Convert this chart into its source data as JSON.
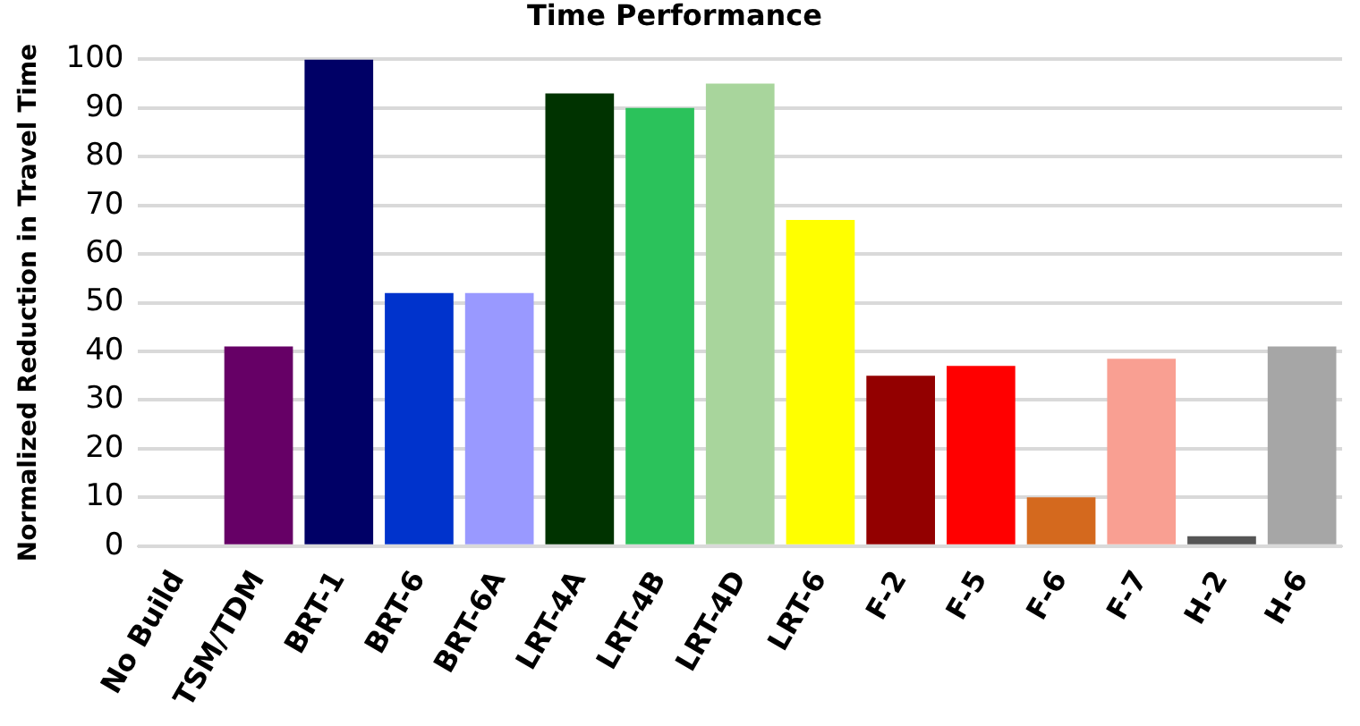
{
  "chart_data": {
    "type": "bar",
    "title": "Time Performance",
    "ylabel": "Normalized Reduction in Travel Time",
    "categories": [
      "No Build",
      "TSM/TDM",
      "BRT-1",
      "BRT-6",
      "BRT-6A",
      "LRT-4A",
      "LRT-4B",
      "LRT-4D",
      "LRT-6",
      "F-2",
      "F-5",
      "F-6",
      "F-7",
      "H-2",
      "H-6"
    ],
    "values": [
      0,
      41,
      100,
      52,
      52,
      93,
      90,
      95,
      67,
      35,
      37,
      10,
      38.5,
      2,
      41
    ],
    "colors": [
      "#660066",
      "#660066",
      "#000066",
      "#0033cc",
      "#9999ff",
      "#003300",
      "#2bc25b",
      "#a8d59c",
      "#ffff00",
      "#930000",
      "#ff0000",
      "#d4691e",
      "#f99f92",
      "#555555",
      "#a6a6a6"
    ],
    "ylim": [
      0,
      100
    ],
    "yticks": [
      0,
      10,
      20,
      30,
      40,
      50,
      60,
      70,
      80,
      90,
      100
    ],
    "grid": "y",
    "legend": false
  }
}
